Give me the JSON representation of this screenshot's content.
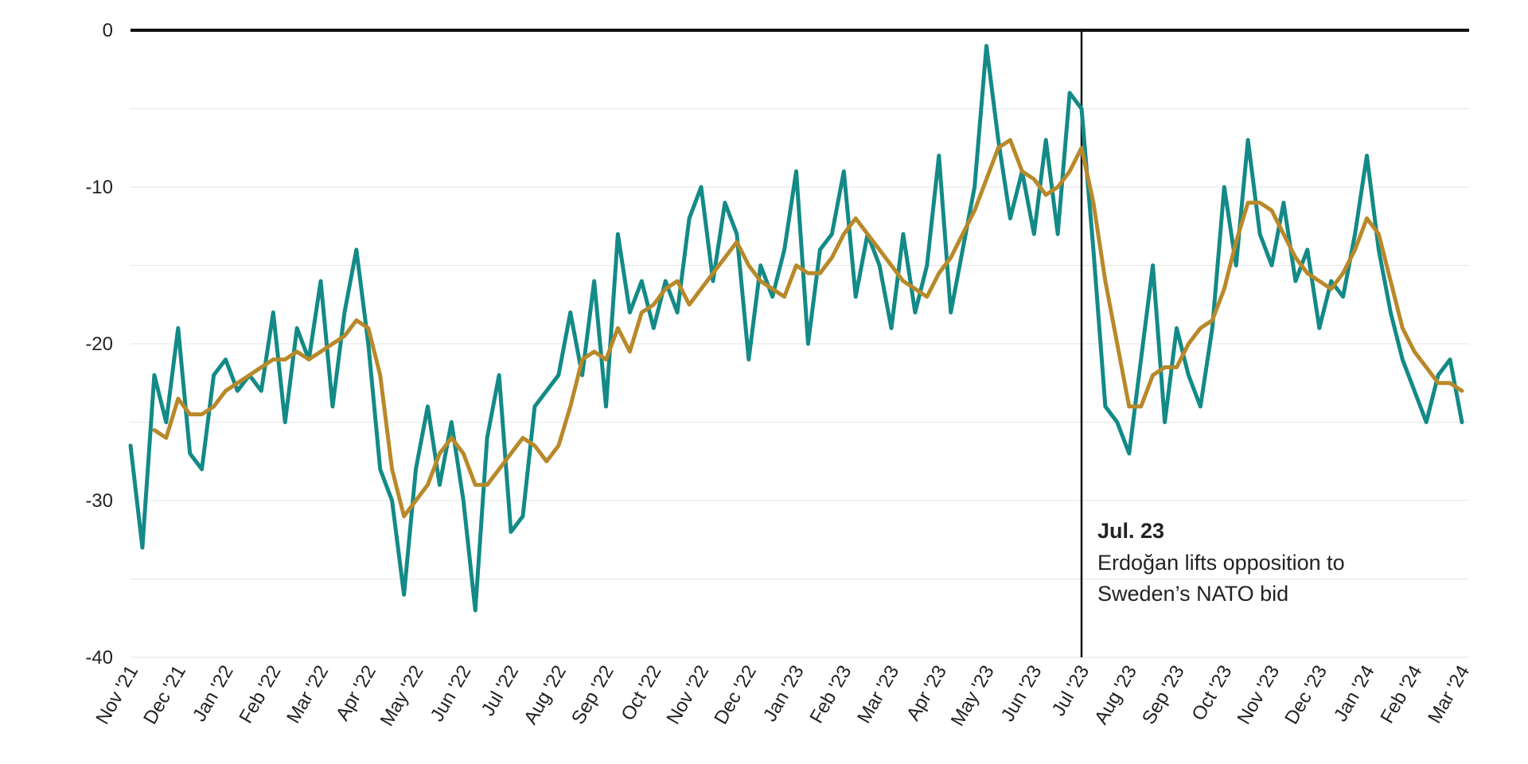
{
  "chart_data": {
    "type": "line",
    "categories": [
      "Nov '21",
      null,
      null,
      null,
      "Dec '21",
      null,
      null,
      null,
      "Jan '22",
      null,
      null,
      null,
      "Feb '22",
      null,
      null,
      null,
      "Mar '22",
      null,
      null,
      null,
      "Apr '22",
      null,
      null,
      null,
      "May '22",
      null,
      null,
      null,
      "Jun '22",
      null,
      null,
      null,
      "Jul '22",
      null,
      null,
      null,
      "Aug '22",
      null,
      null,
      null,
      "Sep '22",
      null,
      null,
      null,
      "Oct '22",
      null,
      null,
      null,
      "Nov '22",
      null,
      null,
      null,
      "Dec '22",
      null,
      null,
      null,
      "Jan '23",
      null,
      null,
      null,
      "Feb '23",
      null,
      null,
      null,
      "Mar '23",
      null,
      null,
      null,
      "Apr '23",
      null,
      null,
      null,
      "May '23",
      null,
      null,
      null,
      "Jun '23",
      null,
      null,
      null,
      "Jul '23",
      null,
      null,
      null,
      "Aug '23",
      null,
      null,
      null,
      "Sep '23",
      null,
      null,
      null,
      "Oct '23",
      null,
      null,
      null,
      "Nov '23",
      null,
      null,
      null,
      "Dec '23",
      null,
      null,
      null,
      "Jan '24",
      null,
      null,
      null,
      "Feb '24",
      null,
      null,
      null,
      "Mar '24"
    ],
    "series": [
      {
        "color": "#138a87",
        "width": 5,
        "values": [
          -26.5,
          -33,
          -22,
          -25,
          -19,
          -27,
          -28,
          -22,
          -21,
          -23,
          -22,
          -23,
          -18,
          -25,
          -19,
          -21,
          -16,
          -24,
          -18,
          -14,
          -20,
          -28,
          -30,
          -36,
          -28,
          -24,
          -29,
          -25,
          -30,
          -37,
          -26,
          -22,
          -32,
          -31,
          -24,
          -23,
          -22,
          -18,
          -22,
          -16,
          -24,
          -13,
          -18,
          -16,
          -19,
          -16,
          -18,
          -12,
          -10,
          -16,
          -11,
          -13,
          -21,
          -15,
          -17,
          -14,
          -9,
          -20,
          -14,
          -13,
          -9,
          -17,
          -13,
          -15,
          -19,
          -13,
          -18,
          -15,
          -8,
          -18,
          -14,
          -10,
          -1,
          -7,
          -12,
          -9,
          -13,
          -7,
          -13,
          -4,
          -5,
          -14,
          -24,
          -25,
          -27,
          -21,
          -15,
          -25,
          -19,
          -22,
          -24,
          -19,
          -10,
          -15,
          -7,
          -13,
          -15,
          -11,
          -16,
          -14,
          -19,
          -16,
          -17,
          -13,
          -8,
          -14,
          -18,
          -21,
          -23,
          -25,
          -22,
          -21,
          -25
        ]
      },
      {
        "color": "#b8892a",
        "width": 5,
        "values": [
          null,
          null,
          -25.5,
          -26,
          -23.5,
          -24.5,
          -24.5,
          -24,
          -23,
          -22.5,
          -22,
          -21.5,
          -21,
          -21,
          -20.5,
          -21,
          -20.5,
          -20,
          -19.5,
          -18.5,
          -19,
          -22,
          -28,
          -31,
          -30,
          -29,
          -27,
          -26,
          -27,
          -29,
          -29,
          -28,
          -27,
          -26,
          -26.5,
          -27.5,
          -26.5,
          -24,
          -21,
          -20.5,
          -21,
          -19,
          -20.5,
          -18,
          -17.5,
          -16.5,
          -16,
          -17.5,
          -16.5,
          -15.5,
          -14.5,
          -13.5,
          -15,
          -16,
          -16.5,
          -17,
          -15,
          -15.5,
          -15.5,
          -14.5,
          -13,
          -12,
          -13,
          -14,
          -15,
          -16,
          -16.5,
          -17,
          -15.5,
          -14.5,
          -13,
          -11.5,
          -9.5,
          -7.5,
          -7,
          -9,
          -9.5,
          -10.5,
          -10,
          -9,
          -7.5,
          -11,
          -16,
          -20,
          -24,
          -24,
          -22,
          -21.5,
          -21.5,
          -20,
          -19,
          -18.5,
          -16.5,
          -13.5,
          -11,
          -11,
          -11.5,
          -13,
          -14.5,
          -15.5,
          -16,
          -16.5,
          -15.5,
          -14,
          -12,
          -13,
          -16,
          -19,
          -20.5,
          -21.5,
          -22.5,
          -22.5,
          -23
        ]
      }
    ],
    "ylim": [
      -40,
      0
    ],
    "yticks": [
      0,
      -10,
      -20,
      -30,
      -40
    ],
    "minor_grid": [
      -5,
      -15,
      -25,
      -35
    ],
    "grid": true,
    "annotation": {
      "x": "Jul '23",
      "title": "Jul. 23",
      "text": [
        "Erdoğan lifts opposition to",
        "Sweden’s NATO bid"
      ]
    }
  }
}
